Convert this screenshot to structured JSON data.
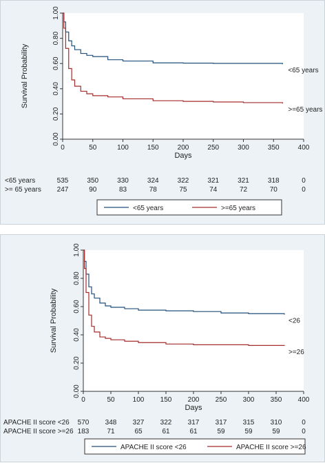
{
  "chart_data": [
    {
      "type": "line",
      "xlabel": "Days",
      "ylabel": "Survival Probability",
      "xlim": [
        0,
        400
      ],
      "ylim": [
        0,
        1
      ],
      "x_ticks": [
        "0",
        "50",
        "100",
        "150",
        "200",
        "250",
        "300",
        "350",
        "400"
      ],
      "y_ticks": [
        "0.00",
        "0.20",
        "0.40",
        "0.60",
        "0.80",
        "1.00"
      ],
      "series": [
        {
          "name": "<65 years",
          "color": "#1f4e79",
          "x": [
            0,
            2,
            5,
            10,
            15,
            20,
            30,
            40,
            50,
            75,
            100,
            150,
            200,
            250,
            300,
            365
          ],
          "y": [
            1.0,
            0.93,
            0.85,
            0.78,
            0.74,
            0.71,
            0.68,
            0.665,
            0.655,
            0.63,
            0.62,
            0.605,
            0.603,
            0.601,
            0.601,
            0.595
          ]
        },
        {
          "name": ">=65 years",
          "color": "#a52a2a",
          "x": [
            0,
            2,
            5,
            10,
            15,
            20,
            30,
            40,
            50,
            75,
            100,
            150,
            200,
            250,
            300,
            365
          ],
          "y": [
            1.0,
            0.88,
            0.72,
            0.56,
            0.47,
            0.42,
            0.38,
            0.36,
            0.345,
            0.335,
            0.32,
            0.305,
            0.3,
            0.295,
            0.29,
            0.283
          ]
        }
      ],
      "curve_labels": [
        "<65 years",
        ">=65 years"
      ],
      "risk_table": {
        "rows": [
          {
            "label": "<65 years",
            "values": [
              "535",
              "350",
              "330",
              "324",
              "322",
              "321",
              "321",
              "318",
              "0"
            ]
          },
          {
            "label": ">= 65 years",
            "values": [
              "247",
              "90",
              "83",
              "78",
              "75",
              "74",
              "72",
              "70",
              "0"
            ]
          }
        ]
      },
      "legend": [
        "<65 years",
        ">=65 years"
      ],
      "legend_position": "bottom"
    },
    {
      "type": "line",
      "xlabel": "Days",
      "ylabel": "Survival Probability",
      "xlim": [
        0,
        400
      ],
      "ylim": [
        0,
        1
      ],
      "x_ticks": [
        "0",
        "50",
        "100",
        "150",
        "200",
        "250",
        "300",
        "350",
        "400"
      ],
      "y_ticks": [
        "0.00",
        "0.20",
        "0.40",
        "0.60",
        "0.80",
        "1.00"
      ],
      "series": [
        {
          "name": "APACHE II score <26",
          "color": "#1f4e79",
          "x": [
            0,
            2,
            5,
            10,
            15,
            20,
            30,
            40,
            50,
            75,
            100,
            150,
            200,
            250,
            300,
            365
          ],
          "y": [
            1.0,
            0.92,
            0.83,
            0.74,
            0.69,
            0.66,
            0.625,
            0.605,
            0.595,
            0.585,
            0.575,
            0.57,
            0.565,
            0.555,
            0.55,
            0.543
          ]
        },
        {
          "name": "APACHE II score >=26",
          "color": "#a52a2a",
          "x": [
            0,
            2,
            5,
            10,
            15,
            20,
            30,
            40,
            50,
            75,
            100,
            150,
            200,
            250,
            300,
            365
          ],
          "y": [
            1.0,
            0.87,
            0.7,
            0.54,
            0.46,
            0.42,
            0.385,
            0.375,
            0.365,
            0.355,
            0.345,
            0.335,
            0.33,
            0.33,
            0.325,
            0.322
          ]
        }
      ],
      "curve_labels": [
        "<26",
        ">=26"
      ],
      "risk_table": {
        "rows": [
          {
            "label": "APACHE II score <26",
            "values": [
              "570",
              "348",
              "327",
              "322",
              "317",
              "317",
              "315",
              "310",
              "0"
            ]
          },
          {
            "label": "APACHE II score >=26",
            "values": [
              "183",
              "71",
              "65",
              "61",
              "61",
              "59",
              "59",
              "59",
              "0"
            ]
          }
        ]
      },
      "legend": [
        "APACHE II score <26",
        "APACHE II score >=26"
      ],
      "legend_position": "bottom"
    }
  ]
}
